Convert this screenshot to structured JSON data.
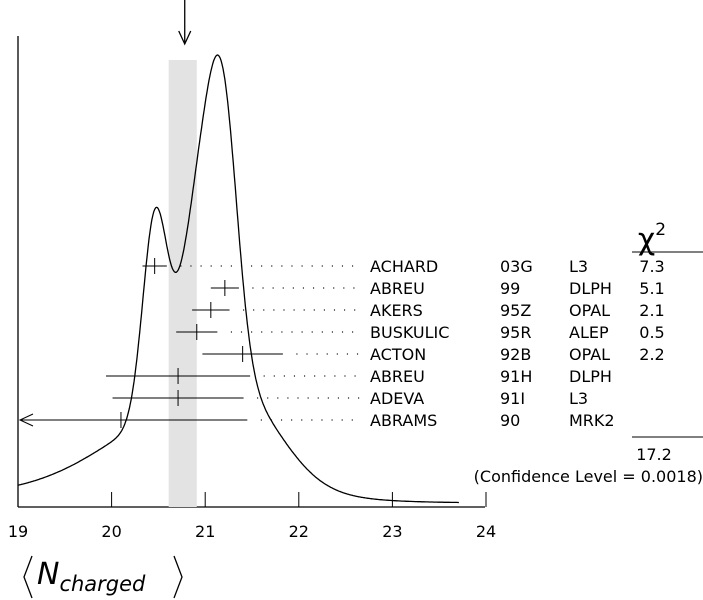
{
  "chart_data": {
    "type": "scatter",
    "title": "",
    "xlabel": "⟨N⟩",
    "xlabel_base": "N",
    "xlabel_subscript": "charged",
    "ylabel": "",
    "xlim": [
      19,
      24
    ],
    "x_ticks": [
      "19",
      "20",
      "21",
      "22",
      "23",
      "24"
    ],
    "grid": false,
    "weighted_average": {
      "value": 20.76,
      "band": [
        20.61,
        20.91
      ]
    },
    "chi2_header": "χ",
    "chi2_header_power": "2",
    "measurements": [
      {
        "author": "ACHARD",
        "ref": "03G",
        "experiment": "L3",
        "value": 20.46,
        "error": 0.13,
        "chi2": "7.3"
      },
      {
        "author": "ABREU",
        "ref": "99",
        "experiment": "DLPH",
        "value": 21.21,
        "error": 0.15,
        "chi2": "5.1"
      },
      {
        "author": "AKERS",
        "ref": "95Z",
        "experiment": "OPAL",
        "value": 21.06,
        "error": 0.2,
        "chi2": "2.1"
      },
      {
        "author": "BUSKULIC",
        "ref": "95R",
        "experiment": "ALEP",
        "value": 20.91,
        "error": 0.22,
        "chi2": "0.5"
      },
      {
        "author": "ACTON",
        "ref": "92B",
        "experiment": "OPAL",
        "value": 21.4,
        "error": 0.43,
        "chi2": "2.2"
      },
      {
        "author": "ABREU",
        "ref": "91H",
        "experiment": "DLPH",
        "value": 20.71,
        "error": 0.77,
        "chi2": ""
      },
      {
        "author": "ADEVA",
        "ref": "91I",
        "experiment": "L3",
        "value": 20.71,
        "error": 0.7,
        "chi2": ""
      },
      {
        "author": "ABRAMS",
        "ref": "90",
        "experiment": "MRK2",
        "value": 20.1,
        "error": 1.35,
        "chi2": "",
        "lower_arrow": true
      }
    ],
    "chi2_total": "17.2",
    "confidence_level": "(Confidence Level = 0.0018)"
  }
}
